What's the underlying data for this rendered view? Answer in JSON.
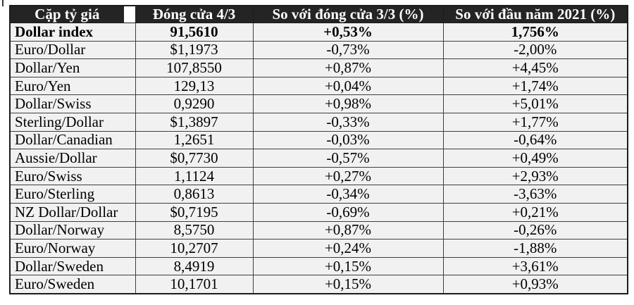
{
  "colors": {
    "header_bg": "#242424",
    "header_text": "#ffffff",
    "row_bg": "#f1f1f1",
    "border": "#3e3e3e",
    "outer_border": "#1c1c1c",
    "text": "#000000",
    "page_bg": "#ffffff"
  },
  "chart_data": {
    "type": "table",
    "columns": [
      "Cặp tỷ giá",
      "Đóng cửa 4/3",
      "So với đóng cửa 3/3 (%)",
      "So với đầu năm 2021 (%)"
    ],
    "rows": [
      {
        "pair": "Dollar index",
        "close": "91,5610",
        "vs_prev_close": "+0,53%",
        "vs_ytd": "1,756%",
        "bold": true
      },
      {
        "pair": "Euro/Dollar",
        "close": "$1,1973",
        "vs_prev_close": "-0,73%",
        "vs_ytd": "-2,00%",
        "bold": false
      },
      {
        "pair": "Dollar/Yen",
        "close": "107,8550",
        "vs_prev_close": "+0,87%",
        "vs_ytd": "+4,45%",
        "bold": false
      },
      {
        "pair": "Euro/Yen",
        "close": "129,13",
        "vs_prev_close": "+0,04%",
        "vs_ytd": "+1,74%",
        "bold": false
      },
      {
        "pair": "Dollar/Swiss",
        "close": "0,9290",
        "vs_prev_close": "+0,98%",
        "vs_ytd": "+5,01%",
        "bold": false
      },
      {
        "pair": "Sterling/Dollar",
        "close": "$1,3897",
        "vs_prev_close": "-0,33%",
        "vs_ytd": "+1,77%",
        "bold": false
      },
      {
        "pair": "Dollar/Canadian",
        "close": "1,2651",
        "vs_prev_close": "-0,03%",
        "vs_ytd": "-0,64%",
        "bold": false
      },
      {
        "pair": "Aussie/Dollar",
        "close": "$0,7730",
        "vs_prev_close": "-0,57%",
        "vs_ytd": "+0,49%",
        "bold": false
      },
      {
        "pair": "Euro/Swiss",
        "close": "1,1124",
        "vs_prev_close": "+0,27%",
        "vs_ytd": "+2,93%",
        "bold": false
      },
      {
        "pair": "Euro/Sterling",
        "close": "0,8613",
        "vs_prev_close": "-0,34%",
        "vs_ytd": "-3,63%",
        "bold": false
      },
      {
        "pair": "NZ Dollar/Dollar",
        "close": "$0,7195",
        "vs_prev_close": "-0,69%",
        "vs_ytd": "+0,21%",
        "bold": false
      },
      {
        "pair": "Dollar/Norway",
        "close": "8,5750",
        "vs_prev_close": "+0,87%",
        "vs_ytd": "-0,26%",
        "bold": false
      },
      {
        "pair": "Euro/Norway",
        "close": "10,2707",
        "vs_prev_close": "+0,24%",
        "vs_ytd": "-1,88%",
        "bold": false
      },
      {
        "pair": "Dollar/Sweden",
        "close": "8,4919",
        "vs_prev_close": "+0,15%",
        "vs_ytd": "+3,61%",
        "bold": false
      },
      {
        "pair": "Euro/Sweden",
        "close": "10,1701",
        "vs_prev_close": "+0,15%",
        "vs_ytd": "+0,93%",
        "bold": false
      }
    ]
  }
}
